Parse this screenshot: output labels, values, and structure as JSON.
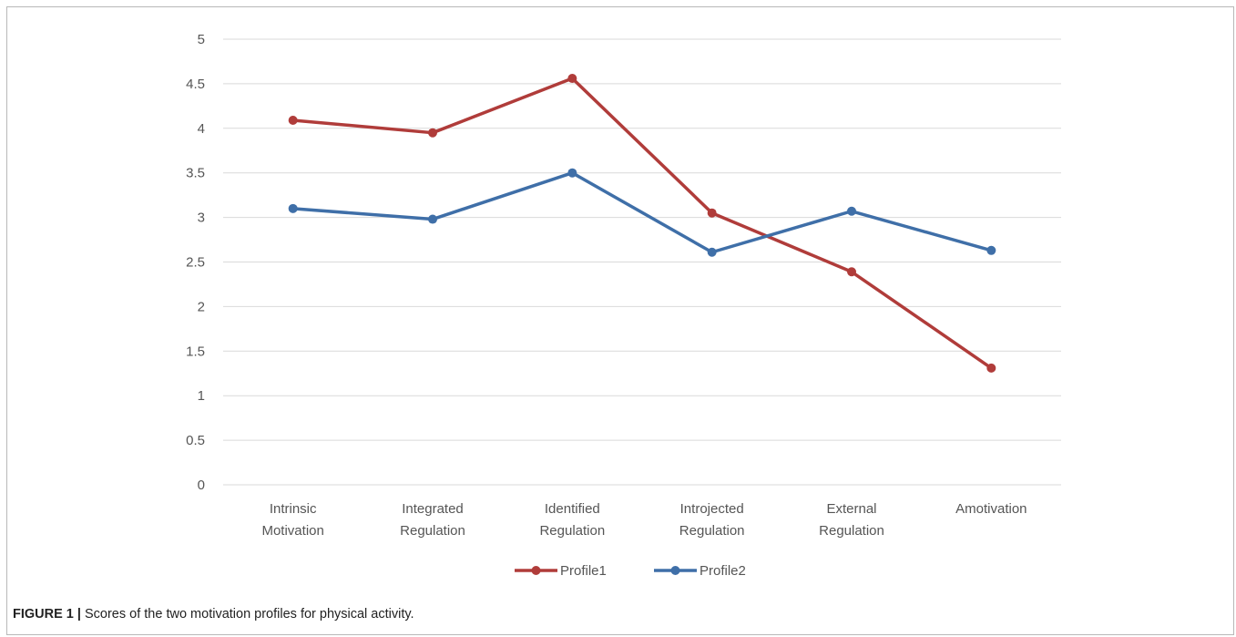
{
  "chart_data": {
    "type": "line",
    "categories": [
      [
        "Intrinsic",
        "Motivation"
      ],
      [
        "Integrated",
        "Regulation"
      ],
      [
        "Identified",
        "Regulation"
      ],
      [
        "Introjected",
        "Regulation"
      ],
      [
        "External",
        "Regulation"
      ],
      [
        "Amotivation"
      ]
    ],
    "series": [
      {
        "name": "Profile1",
        "color": "#b03c3a",
        "values": [
          4.09,
          3.95,
          4.56,
          3.05,
          2.39,
          1.31
        ]
      },
      {
        "name": "Profile2",
        "color": "#3f6fa8",
        "values": [
          3.1,
          2.98,
          3.5,
          2.61,
          3.07,
          2.63
        ]
      }
    ],
    "y_ticks": [
      "0",
      "0.5",
      "1",
      "1.5",
      "2",
      "2.5",
      "3",
      "3.5",
      "4",
      "4.5",
      "5"
    ],
    "ylim": [
      0,
      5
    ],
    "grid": true,
    "legend_position": "bottom"
  },
  "caption": {
    "label": "FIGURE 1 |",
    "text": " Scores of the two motivation profiles for physical activity."
  }
}
